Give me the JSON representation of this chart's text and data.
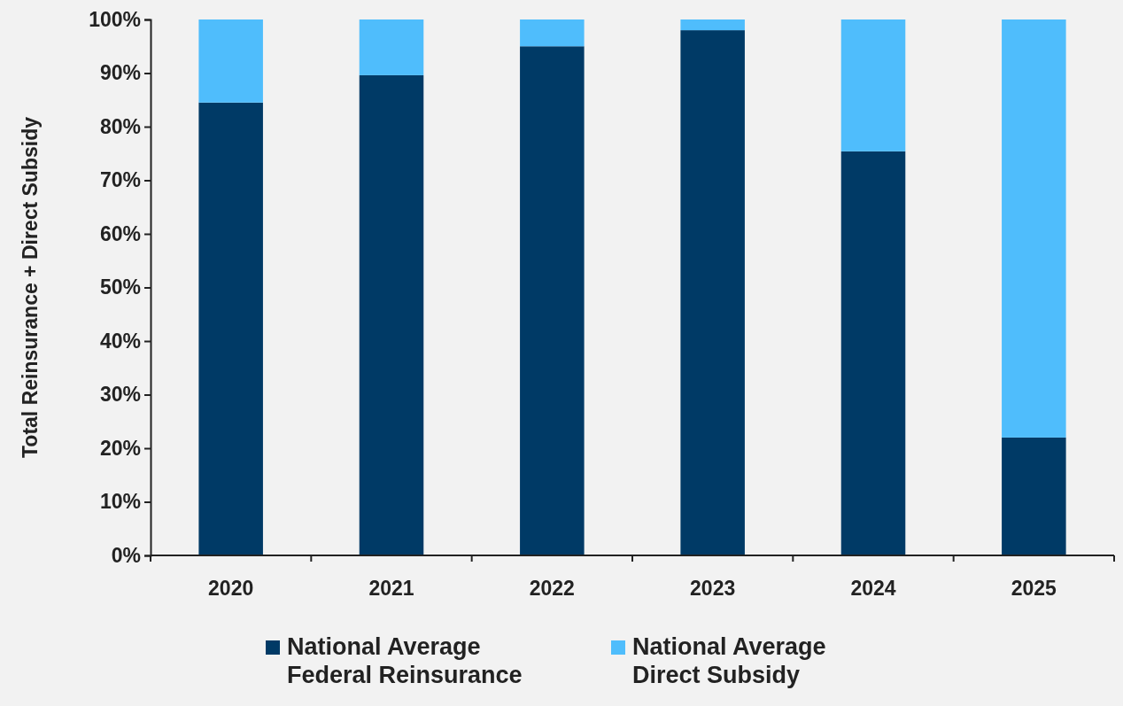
{
  "chart_data": {
    "type": "bar",
    "stacked": true,
    "ylabel": "Total Reinsurance + Direct Subsidy",
    "categories": [
      "2020",
      "2021",
      "2022",
      "2023",
      "2024",
      "2025"
    ],
    "series": [
      {
        "name": "National Average Federal Reinsurance",
        "color": "#003a66",
        "values": [
          84.5,
          89.6,
          95.0,
          98.0,
          75.4,
          22.0
        ]
      },
      {
        "name": "National Average Direct Subsidy",
        "color": "#4fbdfc",
        "values": [
          15.5,
          10.4,
          5.0,
          2.0,
          24.6,
          78.0
        ]
      }
    ],
    "ylim": [
      0,
      100
    ],
    "yticks": [
      {
        "value": 0,
        "label": "0%"
      },
      {
        "value": 10,
        "label": "10%"
      },
      {
        "value": 20,
        "label": "20%"
      },
      {
        "value": 30,
        "label": "30%"
      },
      {
        "value": 40,
        "label": "40%"
      },
      {
        "value": 50,
        "label": "50%"
      },
      {
        "value": 60,
        "label": "60%"
      },
      {
        "value": 70,
        "label": "70%"
      },
      {
        "value": 80,
        "label": "80%"
      },
      {
        "value": 90,
        "label": "90%"
      },
      {
        "value": 100,
        "label": "100%"
      }
    ],
    "grid": false,
    "legend": "bottom"
  }
}
